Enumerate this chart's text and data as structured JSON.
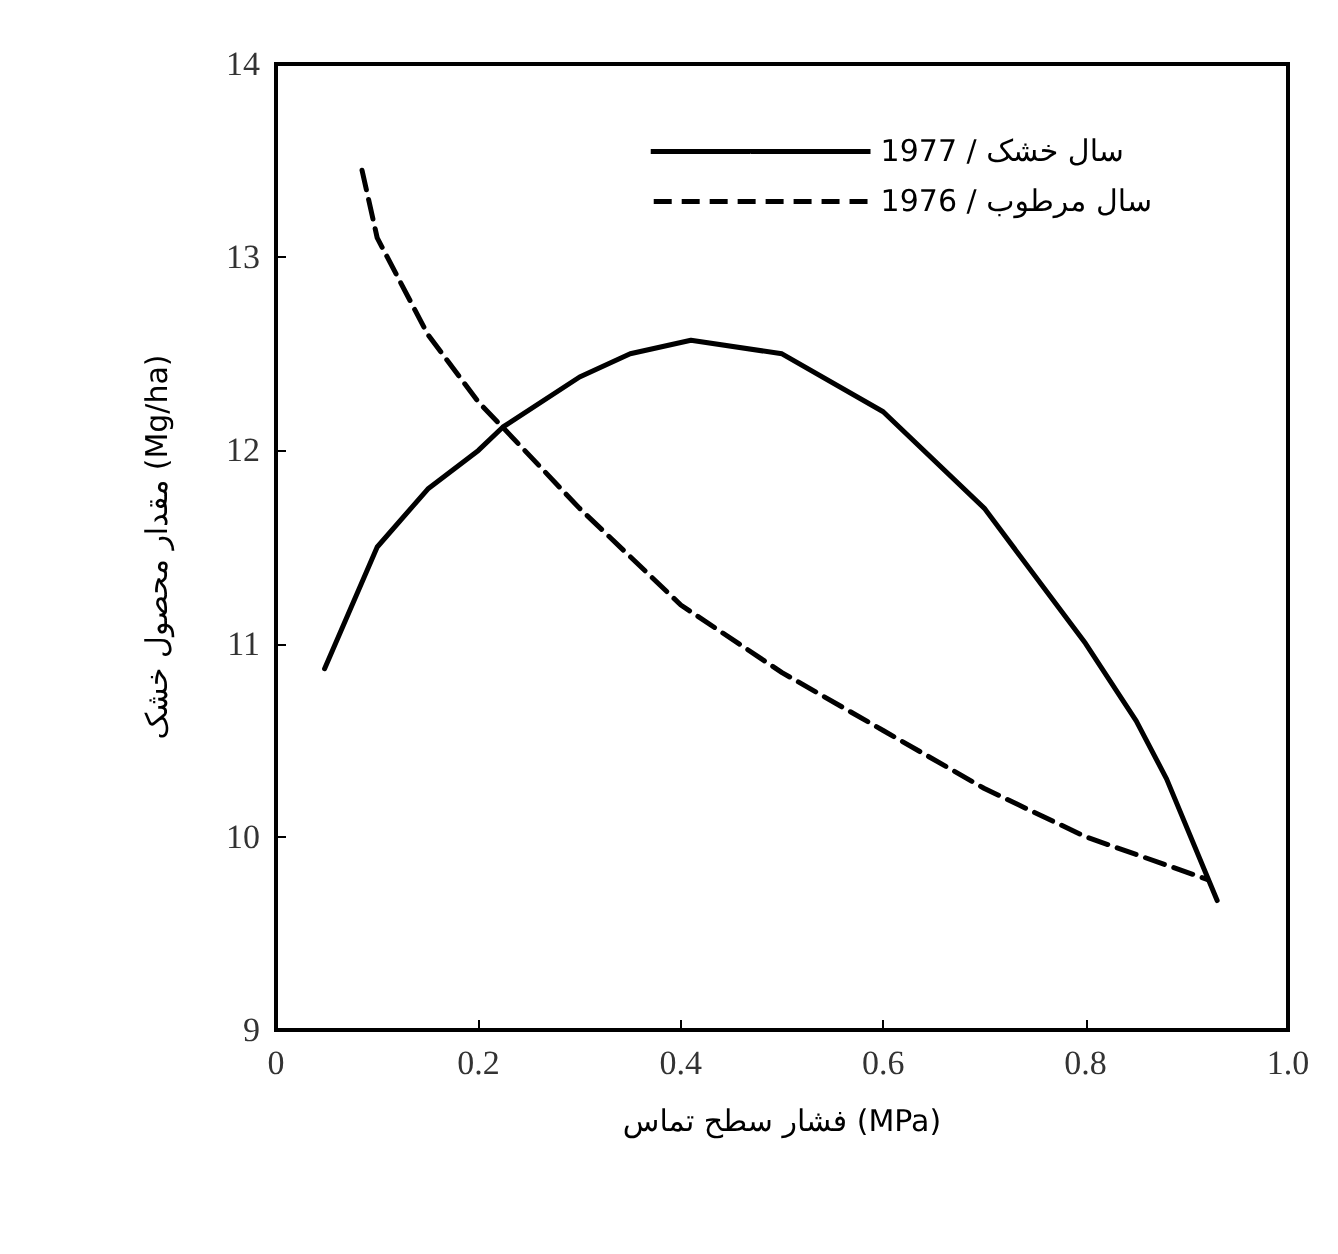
{
  "chart_data": {
    "type": "line",
    "xlabel": "فشار سطح تماس (MPa)",
    "ylabel": "مقدار محصول خشک (Mg/ha)",
    "xlim": [
      0,
      1
    ],
    "xticks": [
      {
        "value": 0,
        "label": "0"
      },
      0.2,
      0.4,
      0.6,
      0.8,
      {
        "value": 1,
        "label": "1.0"
      }
    ],
    "ylim": [
      9,
      14
    ],
    "yticks": [
      9,
      10,
      11,
      12,
      13,
      14
    ],
    "grid": false,
    "legend": "top right",
    "marker": "none",
    "series": [
      {
        "name": "سال خشک / 1977",
        "color": "#000000",
        "line_style": "solid",
        "x": [
          0.048,
          0.1,
          0.15,
          0.2,
          0.224,
          0.3,
          0.35,
          0.41,
          0.5,
          0.6,
          0.7,
          0.8,
          0.85,
          0.88,
          0.93
        ],
        "values": [
          10.87,
          11.5,
          11.8,
          12.0,
          12.12,
          12.38,
          12.5,
          12.57,
          12.5,
          12.2,
          11.7,
          11.0,
          10.6,
          10.3,
          9.67
        ]
      },
      {
        "name": "سال مرطوب / 1976",
        "color": "#000000",
        "line_style": "dashed",
        "x": [
          0.085,
          0.1,
          0.15,
          0.2,
          0.224,
          0.3,
          0.4,
          0.5,
          0.6,
          0.7,
          0.8,
          0.92
        ],
        "values": [
          13.45,
          13.1,
          12.6,
          12.25,
          12.12,
          11.7,
          11.2,
          10.85,
          10.55,
          10.25,
          10.0,
          9.78
        ]
      }
    ]
  }
}
